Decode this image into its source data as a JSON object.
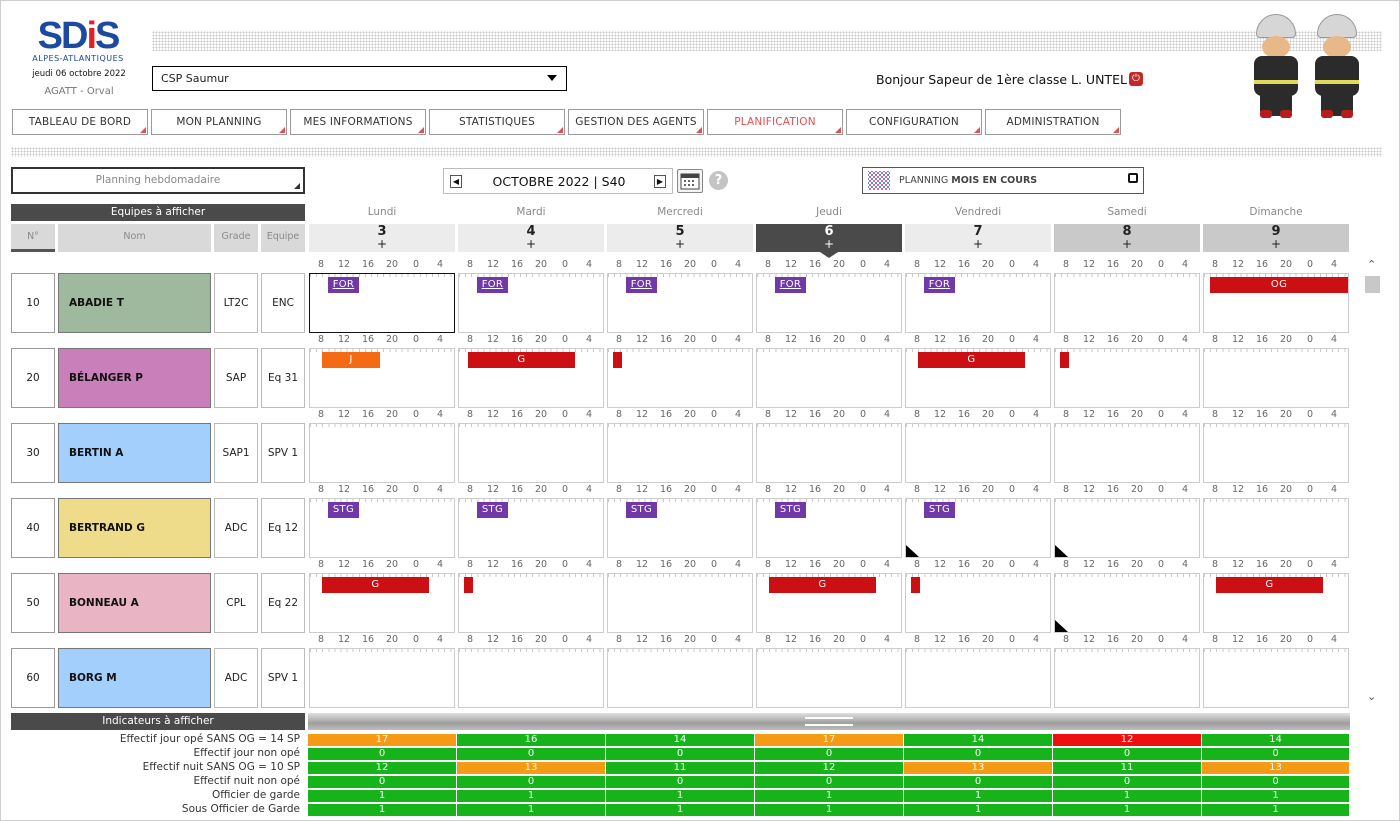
{
  "header": {
    "logo_main": "SDiS",
    "logo_sub": "ALPES-ATLANTIQUES",
    "date": "jeudi 06 octobre 2022",
    "app_line": "AGATT - Orval",
    "site_select": "CSP Saumur",
    "greeting": "Bonjour Sapeur de 1ère classe L. UNTEL"
  },
  "menu": [
    {
      "label": "TABLEAU DE BORD"
    },
    {
      "label": "MON PLANNING"
    },
    {
      "label": "MES INFORMATIONS"
    },
    {
      "label": "STATISTIQUES"
    },
    {
      "label": "GESTION DES AGENTS"
    },
    {
      "label": "PLANIFICATION",
      "active": true
    },
    {
      "label": "CONFIGURATION"
    },
    {
      "label": "ADMINISTRATION"
    }
  ],
  "toolbar": {
    "view_select": "Planning hebdomadaire",
    "week_label": "OCTOBRE 2022 | S40",
    "planning_prefix": "PLANNING ",
    "planning_bold": "MOIS EN COURS"
  },
  "team_panel": {
    "title": "Equipes à afficher",
    "col_num": "N°",
    "col_name": "Nom",
    "col_grade": "Grade",
    "col_team": "Equipe"
  },
  "days": [
    {
      "name": "Lundi",
      "num": "3",
      "plus": "+"
    },
    {
      "name": "Mardi",
      "num": "4",
      "plus": "+"
    },
    {
      "name": "Mercredi",
      "num": "5",
      "plus": "+"
    },
    {
      "name": "Jeudi",
      "num": "6",
      "plus": "+",
      "current": true
    },
    {
      "name": "Vendredi",
      "num": "7",
      "plus": "+"
    },
    {
      "name": "Samedi",
      "num": "8",
      "plus": "+",
      "weekend": true
    },
    {
      "name": "Dimanche",
      "num": "9",
      "plus": "+",
      "weekend": true
    }
  ],
  "tick_labels": [
    "8",
    "12",
    "16",
    "20",
    "0",
    "4"
  ],
  "agents": [
    {
      "num": "10",
      "name": "ABADIE T",
      "grade": "LT2C",
      "team": "ENC",
      "color": "#9fb99e",
      "cells": [
        [
          {
            "code": "FOR",
            "type": "for",
            "start": 9,
            "end": 14
          }
        ],
        [
          {
            "code": "FOR",
            "type": "for",
            "start": 9,
            "end": 14
          }
        ],
        [
          {
            "code": "FOR",
            "type": "for",
            "start": 9,
            "end": 14
          }
        ],
        [
          {
            "code": "FOR",
            "type": "for",
            "start": 9,
            "end": 14
          }
        ],
        [
          {
            "code": "FOR",
            "type": "for",
            "start": 9,
            "end": 14
          }
        ],
        [],
        [
          {
            "code": "OG",
            "type": "og",
            "start": 7,
            "end": 31
          }
        ]
      ]
    },
    {
      "num": "20",
      "name": "BÉLANGER P",
      "grade": "SAP",
      "team": "Eq 31",
      "color": "#c97fb9",
      "cells": [
        [
          {
            "code": "J",
            "type": "j",
            "start": 8,
            "end": 17.5
          }
        ],
        [
          {
            "code": "G",
            "type": "g",
            "start": 7.5,
            "end": 25
          }
        ],
        [
          {
            "code": "",
            "type": "g",
            "start": 6.9,
            "end": 8.3
          }
        ],
        [],
        [
          {
            "code": "G",
            "type": "g",
            "start": 8,
            "end": 25.5
          }
        ],
        [
          {
            "code": "",
            "type": "g",
            "start": 6.9,
            "end": 8.3
          }
        ],
        []
      ]
    },
    {
      "num": "30",
      "name": "BERTIN A",
      "grade": "SAP1",
      "team": "SPV 1",
      "color": "#a3cffd",
      "cells": [
        [],
        [],
        [],
        [],
        [],
        [],
        []
      ]
    },
    {
      "num": "40",
      "name": "BERTRAND G",
      "grade": "ADC",
      "team": "Eq 12",
      "color": "#efdc8b",
      "cells": [
        [
          {
            "code": "STG",
            "type": "stg",
            "start": 9,
            "end": 14
          }
        ],
        [
          {
            "code": "STG",
            "type": "stg",
            "start": 9,
            "end": 14
          }
        ],
        [
          {
            "code": "STG",
            "type": "stg",
            "start": 9,
            "end": 14
          }
        ],
        [
          {
            "code": "STG",
            "type": "stg",
            "start": 9,
            "end": 14
          }
        ],
        [
          {
            "code": "STG",
            "type": "stg",
            "start": 9,
            "end": 14
          }
        ],
        [],
        []
      ],
      "marks": [
        4,
        5
      ]
    },
    {
      "num": "50",
      "name": "BONNEAU A",
      "grade": "CPL",
      "team": "Eq 22",
      "color": "#e9b5c5",
      "cells": [
        [
          {
            "code": "G",
            "type": "g",
            "start": 8,
            "end": 25.5
          }
        ],
        [
          {
            "code": "",
            "type": "g",
            "start": 6.9,
            "end": 8.3
          }
        ],
        [],
        [
          {
            "code": "G",
            "type": "g",
            "start": 8,
            "end": 25.5
          }
        ],
        [
          {
            "code": "",
            "type": "g",
            "start": 6.9,
            "end": 8.3
          }
        ],
        [],
        [
          {
            "code": "G",
            "type": "g",
            "start": 8,
            "end": 25.5
          }
        ]
      ],
      "marks": [
        5
      ]
    },
    {
      "num": "60",
      "name": "BORG M",
      "grade": "ADC",
      "team": "SPV 1",
      "color": "#a3cffd",
      "cells": [
        [],
        [],
        [],
        [],
        [],
        [],
        []
      ]
    }
  ],
  "indicators": {
    "title": "Indicateurs à afficher",
    "rows": [
      {
        "label": "Effectif jour opé SANS OG = 14 SP",
        "values": [
          "17",
          "16",
          "14",
          "17",
          "14",
          "12",
          "14"
        ],
        "colors": [
          "o",
          "g",
          "g",
          "o",
          "g",
          "r",
          "g"
        ]
      },
      {
        "label": "Effectif jour non opé",
        "values": [
          "0",
          "0",
          "0",
          "0",
          "0",
          "0",
          "0"
        ],
        "colors": [
          "g",
          "g",
          "g",
          "g",
          "g",
          "g",
          "g"
        ]
      },
      {
        "label": "Effectif nuit SANS OG = 10 SP",
        "values": [
          "12",
          "13",
          "11",
          "12",
          "13",
          "11",
          "13"
        ],
        "colors": [
          "g",
          "o",
          "g",
          "g",
          "o",
          "g",
          "o"
        ]
      },
      {
        "label": "Effectif nuit non opé",
        "values": [
          "0",
          "0",
          "0",
          "0",
          "0",
          "0",
          "0"
        ],
        "colors": [
          "g",
          "g",
          "g",
          "g",
          "g",
          "g",
          "g"
        ]
      },
      {
        "label": "Officier de garde",
        "values": [
          "1",
          "1",
          "1",
          "1",
          "1",
          "1",
          "1"
        ],
        "colors": [
          "g",
          "g",
          "g",
          "g",
          "g",
          "g",
          "g"
        ]
      },
      {
        "label": "Sous Officier de Garde",
        "values": [
          "1",
          "1",
          "1",
          "1",
          "1",
          "1",
          "1"
        ],
        "colors": [
          "g",
          "g",
          "g",
          "g",
          "g",
          "g",
          "g"
        ]
      }
    ]
  }
}
